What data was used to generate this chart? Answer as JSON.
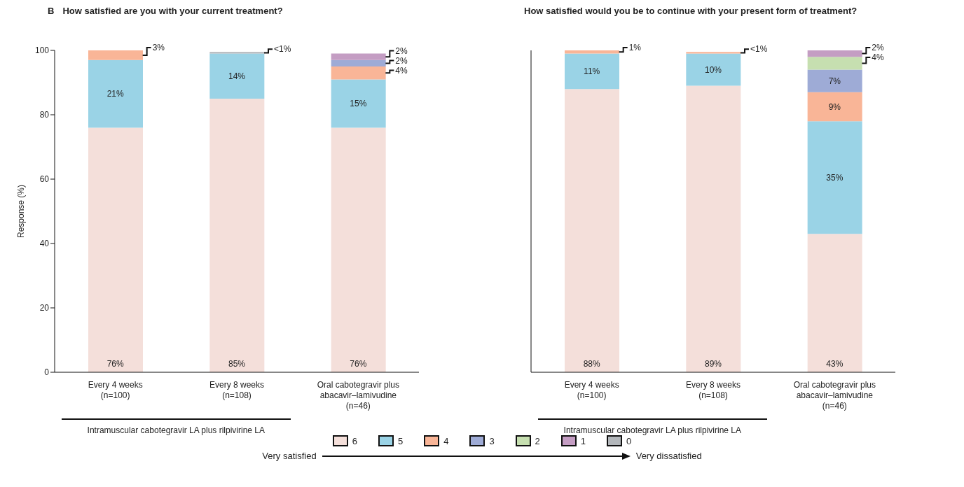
{
  "chart_data": [
    {
      "type": "bar",
      "title": "How satisfied are you with your current treatment?",
      "ylabel": "Response (%)",
      "categories": [
        "Every 4 weeks\n(n=100)",
        "Every 8 weeks\n(n=108)",
        "Oral cabotegravir plus\nabacavir–lamivudine\n(n=46)"
      ],
      "stacked": true,
      "ylim": [
        0,
        100
      ],
      "yticks": [
        0,
        20,
        40,
        60,
        80,
        100
      ],
      "legend": "bottom",
      "annotations": [
        "Intramuscular cabotegravir LA plus rilpivirine LA",
        "B",
        "Very satisfied",
        "Very dissatisfied"
      ],
      "series": [
        {
          "name": "6",
          "color": "#f4dfda",
          "values": [
            76,
            85,
            76
          ],
          "value_labels": [
            "76%",
            "85%",
            "76%"
          ]
        },
        {
          "name": "5",
          "color": "#9ad3e6",
          "values": [
            21,
            14,
            15
          ],
          "value_labels": [
            "21%",
            "14%",
            "15%"
          ]
        },
        {
          "name": "4",
          "color": "#f9b597",
          "values": [
            3,
            null,
            4
          ],
          "value_labels": [
            "3%",
            null,
            "4%"
          ]
        },
        {
          "name": "3",
          "color": "#9eabd6",
          "values": [
            null,
            null,
            2
          ],
          "value_labels": [
            null,
            null,
            "2%"
          ]
        },
        {
          "name": "2",
          "color": "#c6dfb0",
          "values": [
            null,
            null,
            null
          ]
        },
        {
          "name": "1",
          "color": "#c49dc3",
          "values": [
            null,
            null,
            2
          ],
          "value_labels": [
            null,
            null,
            "2%"
          ]
        },
        {
          "name": "0",
          "color": "#b3b7bb",
          "values": [
            null,
            0.5,
            null
          ],
          "value_labels": [
            null,
            "<1%",
            null
          ]
        }
      ]
    },
    {
      "type": "bar",
      "title": "How satisfied would you be to continue with your present form of treatment?",
      "categories": [
        "Every 4 weeks\n(n=100)",
        "Every 8 weeks\n(n=108)",
        "Oral cabotegravir plus\nabacavir–lamivudine\n(n=46)"
      ],
      "stacked": true,
      "ylim": [
        0,
        100
      ],
      "yticks": [
        0,
        20,
        40,
        60,
        80,
        100
      ],
      "tick_labels": "x",
      "annotations": [
        "Intramuscular cabotegravir LA plus rilpivirine LA"
      ],
      "series": [
        {
          "color": "#f4dfda",
          "values": [
            88,
            89,
            43
          ],
          "value_labels": [
            "88%",
            "89%",
            "43%"
          ]
        },
        {
          "color": "#9ad3e6",
          "values": [
            11,
            10,
            35
          ],
          "value_labels": [
            "11%",
            "10%",
            "35%"
          ]
        },
        {
          "color": "#f9b597",
          "values": [
            1,
            0.5,
            9
          ],
          "value_labels": [
            "1%",
            "<1%",
            "9%"
          ]
        },
        {
          "color": "#9eabd6",
          "values": [
            null,
            null,
            7
          ],
          "value_labels": [
            null,
            null,
            "7%"
          ]
        },
        {
          "color": "#c6dfb0",
          "values": [
            null,
            null,
            4
          ],
          "value_labels": [
            null,
            null,
            "4%"
          ]
        },
        {
          "color": "#c49dc3",
          "values": [
            null,
            null,
            2
          ],
          "value_labels": [
            null,
            null,
            "2%"
          ]
        },
        {
          "color": "#b3b7bb",
          "values": [
            null,
            null,
            null
          ]
        }
      ]
    }
  ]
}
